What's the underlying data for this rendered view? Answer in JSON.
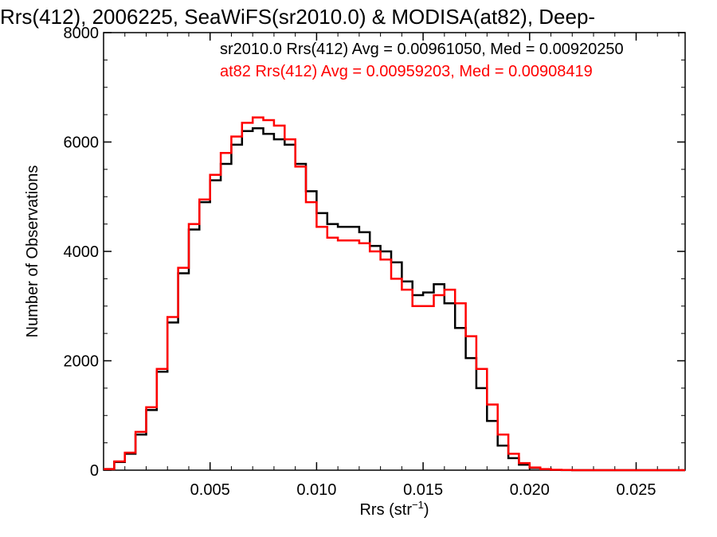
{
  "chart_data": {
    "type": "line",
    "title": "Rrs(412), 2006225, SeaWiFS(sr2010.0) & MODISA(at82), Deep-",
    "xlabel": "Rrs (str",
    "xlabel_sup": "−1",
    "xlabel_close": ")",
    "ylabel": "Number of Observations",
    "xlim": [
      0.0,
      0.0273
    ],
    "ylim": [
      0,
      8000
    ],
    "xticks": [
      0.005,
      0.01,
      0.015,
      0.02,
      0.025
    ],
    "xtick_labels": [
      "0.005",
      "0.010",
      "0.015",
      "0.020",
      "0.025"
    ],
    "yticks": [
      0,
      2000,
      4000,
      6000,
      8000
    ],
    "ytick_labels": [
      "0",
      "2000",
      "4000",
      "6000",
      "8000"
    ],
    "grid": false,
    "legend": "top",
    "series": [
      {
        "name": "sr2010.0",
        "color": "#000000",
        "stats": "sr2010.0 Rrs(412) Avg = 0.00961050, Med = 0.00920250",
        "x": [
          0,
          0.0005,
          0.001,
          0.0015,
          0.002,
          0.0025,
          0.003,
          0.0035,
          0.004,
          0.0045,
          0.005,
          0.0055,
          0.006,
          0.0065,
          0.007,
          0.0075,
          0.008,
          0.0085,
          0.009,
          0.0095,
          0.01,
          0.0105,
          0.011,
          0.0115,
          0.012,
          0.0125,
          0.013,
          0.0135,
          0.014,
          0.0145,
          0.015,
          0.0155,
          0.016,
          0.0165,
          0.017,
          0.0175,
          0.018,
          0.0185,
          0.019,
          0.0195,
          0.02,
          0.0205,
          0.021,
          0.0215,
          0.022,
          0.023,
          0.024,
          0.025,
          0.026,
          0.027
        ],
        "y": [
          20,
          150,
          300,
          650,
          1100,
          1800,
          2700,
          3600,
          4400,
          4900,
          5300,
          5600,
          5950,
          6200,
          6250,
          6150,
          6050,
          5950,
          5600,
          5100,
          4700,
          4500,
          4450,
          4450,
          4350,
          4100,
          4000,
          3800,
          3450,
          3200,
          3250,
          3400,
          3050,
          2600,
          2050,
          1500,
          900,
          450,
          220,
          100,
          40,
          15,
          5,
          2,
          0,
          0,
          0,
          0,
          0,
          0
        ]
      },
      {
        "name": "at82",
        "color": "#ff0000",
        "stats": "at82 Rrs(412) Avg = 0.00959203, Med = 0.00908419",
        "x": [
          0,
          0.0005,
          0.001,
          0.0015,
          0.002,
          0.0025,
          0.003,
          0.0035,
          0.004,
          0.0045,
          0.005,
          0.0055,
          0.006,
          0.0065,
          0.007,
          0.0075,
          0.008,
          0.0085,
          0.009,
          0.0095,
          0.01,
          0.0105,
          0.011,
          0.0115,
          0.012,
          0.0125,
          0.013,
          0.0135,
          0.014,
          0.0145,
          0.015,
          0.0155,
          0.016,
          0.0165,
          0.017,
          0.0175,
          0.018,
          0.0185,
          0.019,
          0.0195,
          0.02,
          0.0205,
          0.021,
          0.0215,
          0.022,
          0.023,
          0.024,
          0.025,
          0.026,
          0.027
        ],
        "y": [
          20,
          160,
          320,
          700,
          1150,
          1850,
          2800,
          3700,
          4500,
          4950,
          5400,
          5800,
          6100,
          6350,
          6450,
          6400,
          6300,
          6050,
          5550,
          4900,
          4450,
          4250,
          4200,
          4200,
          4150,
          4000,
          3850,
          3500,
          3300,
          3000,
          3000,
          3200,
          3300,
          3050,
          2450,
          1850,
          1200,
          650,
          300,
          130,
          50,
          20,
          8,
          3,
          0,
          0,
          0,
          0,
          0,
          0
        ]
      }
    ]
  }
}
